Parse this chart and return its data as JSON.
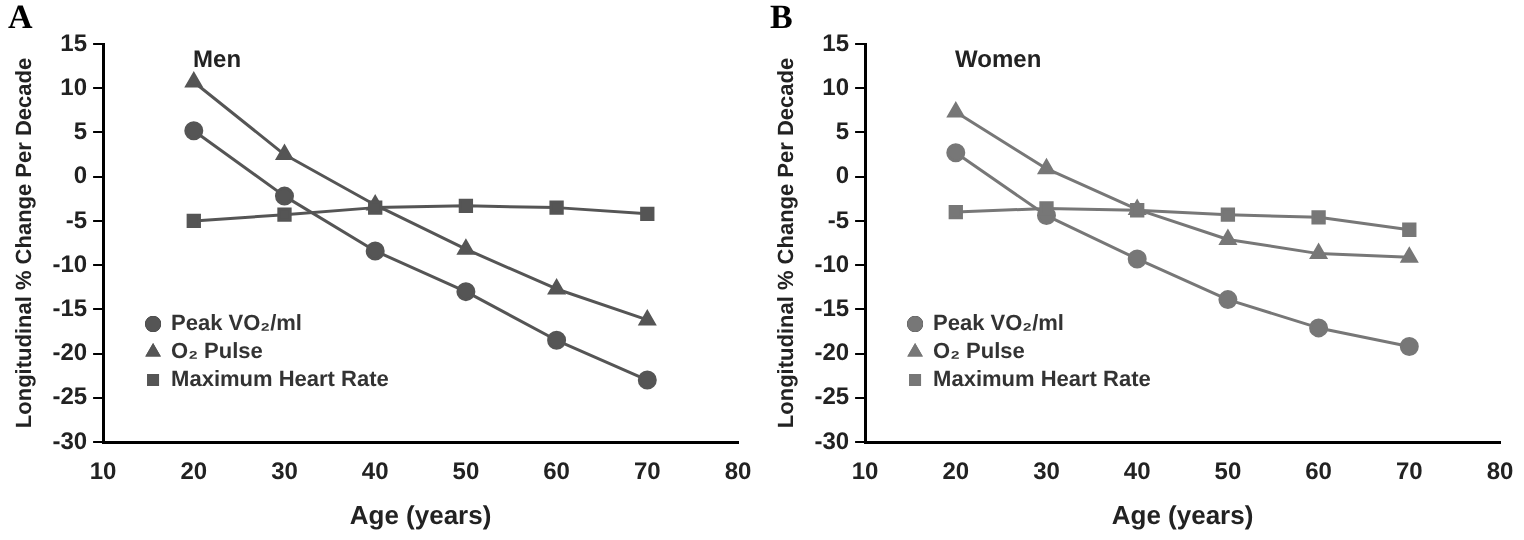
{
  "chart_data": [
    {
      "type": "line",
      "title": "Men",
      "annotations": [
        "A"
      ],
      "xlabel": "Age (years)",
      "ylabel": "Longitudinal % Change Per Decade",
      "x": [
        20,
        30,
        40,
        50,
        60,
        70
      ],
      "xlim": [
        10,
        80
      ],
      "xticks": [
        10,
        20,
        30,
        40,
        50,
        60,
        70,
        80
      ],
      "ylim": [
        -30,
        15
      ],
      "yticks": [
        -30,
        -25,
        -20,
        -15,
        -10,
        -5,
        0,
        5,
        10,
        15
      ],
      "grid": false,
      "legend": "bottom left",
      "series": [
        {
          "name": "Peak VO₂/ml",
          "color": "#555555",
          "marker": "circle",
          "values": [
            5.2,
            -2.2,
            -8.4,
            -13,
            -18.5,
            -23
          ]
        },
        {
          "name": "O₂ Pulse",
          "color": "#555555",
          "marker": "triangle",
          "values": [
            10.7,
            2.5,
            -3.2,
            -8.2,
            -12.7,
            -16.2
          ]
        },
        {
          "name": "Maximum Heart Rate",
          "color": "#555555",
          "marker": "square",
          "values": [
            -5,
            -4.3,
            -3.5,
            -3.3,
            -3.5,
            -4.2
          ]
        }
      ]
    },
    {
      "type": "line",
      "title": "Women",
      "annotations": [
        "B"
      ],
      "xlabel": "Age (years)",
      "ylabel": "Longitudinal % Change Per Decade",
      "x": [
        20,
        30,
        40,
        50,
        60,
        70
      ],
      "xlim": [
        10,
        80
      ],
      "xticks": [
        10,
        20,
        30,
        40,
        50,
        60,
        70,
        80
      ],
      "ylim": [
        -30,
        15
      ],
      "yticks": [
        -30,
        -25,
        -20,
        -15,
        -10,
        -5,
        0,
        5,
        10,
        15
      ],
      "grid": false,
      "legend": "bottom left",
      "series": [
        {
          "name": "Peak VO₂/ml",
          "color": "#777777",
          "marker": "circle",
          "values": [
            2.7,
            -4.4,
            -9.3,
            -13.9,
            -17.1,
            -19.2
          ]
        },
        {
          "name": "O₂ Pulse",
          "color": "#777777",
          "marker": "triangle",
          "values": [
            7.3,
            0.9,
            -3.7,
            -7.1,
            -8.7,
            -9.1
          ]
        },
        {
          "name": "Maximum Heart Rate",
          "color": "#777777",
          "marker": "square",
          "values": [
            -4,
            -3.6,
            -3.8,
            -4.3,
            -4.6,
            -6
          ]
        }
      ]
    }
  ]
}
